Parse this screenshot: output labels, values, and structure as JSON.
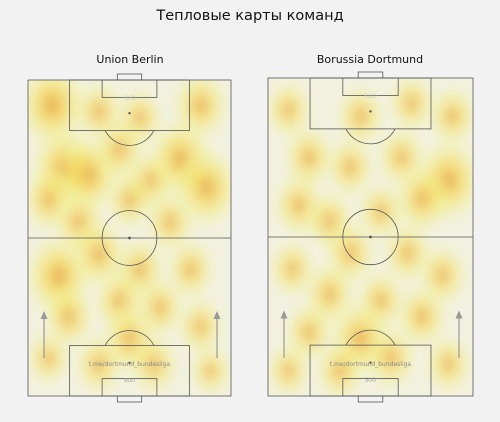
{
  "figure": {
    "title": "Тепловые карты команд"
  },
  "chart_data": [
    {
      "type": "heatmap",
      "title": "Union Berlin",
      "watermark": "t.me/dortmund_bundesliga",
      "logo_text": "SUD",
      "colors": {
        "hot": "#e8a33a",
        "mid": "#f5d84a",
        "low": "#f2f08a",
        "lines": "#555555",
        "arrow": "#999999"
      },
      "attack_direction": "up",
      "hotspots": [
        [
          0.12,
          0.92,
          1.0
        ],
        [
          0.35,
          0.9,
          0.55
        ],
        [
          0.85,
          0.92,
          0.7
        ],
        [
          0.55,
          0.88,
          0.5
        ],
        [
          0.18,
          0.72,
          0.95
        ],
        [
          0.3,
          0.7,
          0.85
        ],
        [
          0.45,
          0.78,
          0.6
        ],
        [
          0.75,
          0.75,
          0.9
        ],
        [
          0.88,
          0.66,
          0.9
        ],
        [
          0.6,
          0.68,
          0.55
        ],
        [
          0.1,
          0.62,
          0.6
        ],
        [
          0.5,
          0.62,
          0.5
        ],
        [
          0.25,
          0.55,
          0.6
        ],
        [
          0.7,
          0.55,
          0.55
        ],
        [
          0.15,
          0.38,
          0.95
        ],
        [
          0.35,
          0.45,
          0.7
        ],
        [
          0.55,
          0.4,
          0.6
        ],
        [
          0.8,
          0.4,
          0.55
        ],
        [
          0.45,
          0.3,
          0.6
        ],
        [
          0.65,
          0.28,
          0.55
        ],
        [
          0.2,
          0.25,
          0.6
        ],
        [
          0.85,
          0.22,
          0.5
        ],
        [
          0.5,
          0.18,
          0.7
        ],
        [
          0.35,
          0.1,
          0.55
        ],
        [
          0.62,
          0.1,
          0.55
        ],
        [
          0.1,
          0.12,
          0.45
        ],
        [
          0.9,
          0.08,
          0.4
        ]
      ]
    },
    {
      "type": "heatmap",
      "title": "Borussia Dortmund",
      "watermark": "t.me/dortmund_bundesliga",
      "logo_text": "SUD",
      "colors": {
        "hot": "#e8a33a",
        "mid": "#f5d84a",
        "low": "#f2f08a",
        "lines": "#555555",
        "arrow": "#999999"
      },
      "attack_direction": "up",
      "hotspots": [
        [
          0.1,
          0.9,
          0.5
        ],
        [
          0.45,
          0.88,
          0.55
        ],
        [
          0.7,
          0.92,
          0.5
        ],
        [
          0.9,
          0.88,
          0.55
        ],
        [
          0.2,
          0.75,
          0.6
        ],
        [
          0.4,
          0.72,
          0.55
        ],
        [
          0.65,
          0.75,
          0.55
        ],
        [
          0.88,
          0.68,
          0.95
        ],
        [
          0.75,
          0.62,
          0.7
        ],
        [
          0.15,
          0.6,
          0.6
        ],
        [
          0.3,
          0.55,
          0.55
        ],
        [
          0.55,
          0.58,
          0.5
        ],
        [
          0.4,
          0.45,
          0.6
        ],
        [
          0.68,
          0.45,
          0.55
        ],
        [
          0.12,
          0.4,
          0.5
        ],
        [
          0.85,
          0.38,
          0.55
        ],
        [
          0.3,
          0.32,
          0.6
        ],
        [
          0.55,
          0.3,
          0.55
        ],
        [
          0.75,
          0.25,
          0.6
        ],
        [
          0.2,
          0.2,
          0.55
        ],
        [
          0.45,
          0.18,
          0.85
        ],
        [
          0.6,
          0.12,
          0.6
        ],
        [
          0.35,
          0.08,
          0.55
        ],
        [
          0.88,
          0.1,
          0.5
        ],
        [
          0.1,
          0.08,
          0.45
        ]
      ]
    }
  ]
}
